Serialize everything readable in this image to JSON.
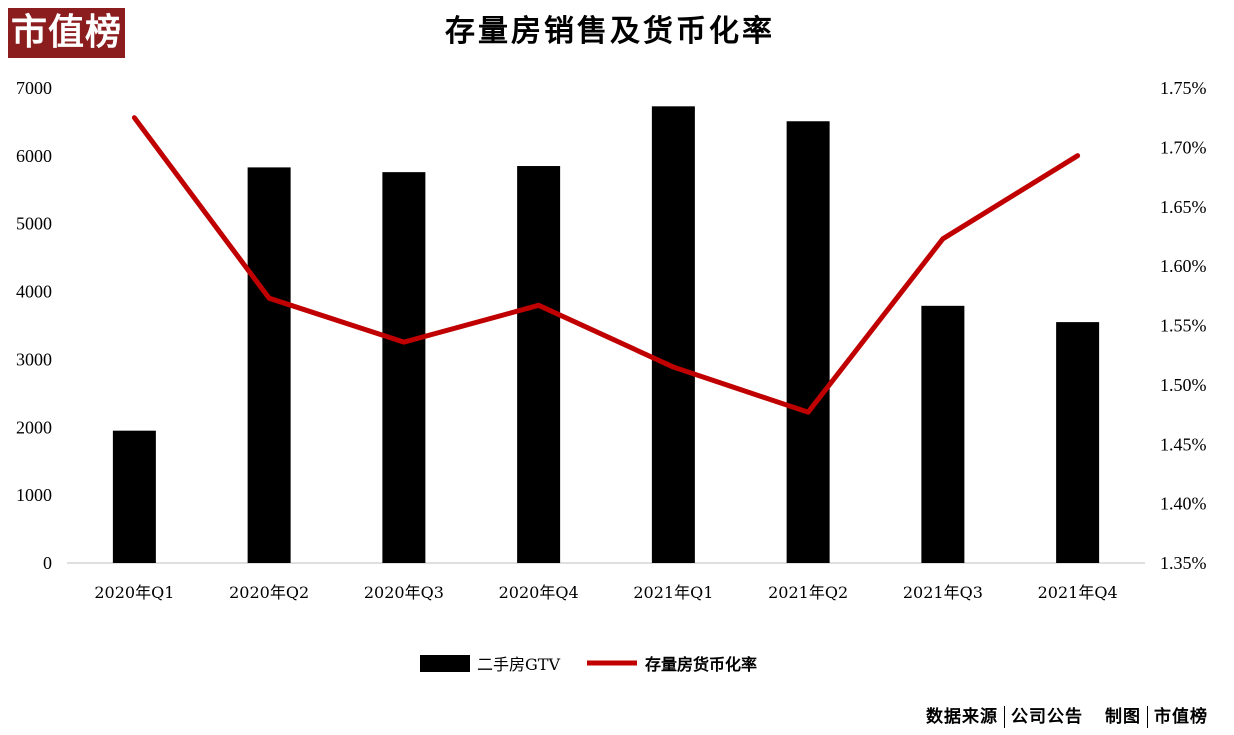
{
  "logo": {
    "text": "市值榜",
    "color": "#8b1d1f"
  },
  "header": {
    "title": "存量房销售及货币化率"
  },
  "footer": {
    "source_label": "数据来源",
    "source_value": "公司公告",
    "maker_label": "制图",
    "maker_value": "市值榜"
  },
  "chart_data": {
    "type": "bar",
    "title": "存量房销售及货币化率",
    "categories": [
      "2020年Q1",
      "2020年Q2",
      "2020年Q3",
      "2020年Q4",
      "2021年Q1",
      "2021年Q2",
      "2021年Q3",
      "2021年Q4"
    ],
    "series": [
      {
        "name": "二手房GTV",
        "type": "bar",
        "axis": "left",
        "color": "#000000",
        "values": [
          1950,
          5830,
          5760,
          5850,
          6730,
          6510,
          3790,
          3550
        ]
      },
      {
        "name": "存量房货币化率",
        "type": "line",
        "axis": "right",
        "color": "#c00000",
        "values": [
          1.725,
          1.573,
          1.536,
          1.567,
          1.515,
          1.477,
          1.623,
          1.693
        ]
      }
    ],
    "left_axis": {
      "min": 0,
      "max": 7000,
      "ticks": [
        "0",
        "1000",
        "2000",
        "3000",
        "4000",
        "5000",
        "6000",
        "7000"
      ]
    },
    "right_axis": {
      "min": 1.35,
      "max": 1.75,
      "ticks": [
        "1.35%",
        "1.40%",
        "1.45%",
        "1.50%",
        "1.55%",
        "1.60%",
        "1.65%",
        "1.70%",
        "1.75%"
      ]
    },
    "grid": false,
    "legend": "bottom-center"
  }
}
